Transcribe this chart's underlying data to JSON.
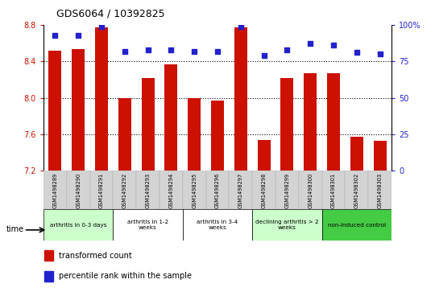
{
  "title": "GDS6064 / 10392825",
  "samples": [
    "GSM1498289",
    "GSM1498290",
    "GSM1498291",
    "GSM1498292",
    "GSM1498293",
    "GSM1498294",
    "GSM1498295",
    "GSM1498296",
    "GSM1498297",
    "GSM1498298",
    "GSM1498299",
    "GSM1498300",
    "GSM1498301",
    "GSM1498302",
    "GSM1498303"
  ],
  "transformed_count": [
    8.52,
    8.53,
    8.77,
    8.0,
    8.22,
    8.37,
    8.0,
    7.97,
    8.77,
    7.54,
    8.22,
    8.27,
    8.27,
    7.57,
    7.53
  ],
  "percentile_rank": [
    93,
    93,
    99,
    82,
    83,
    83,
    82,
    82,
    99,
    79,
    83,
    87,
    86,
    81,
    80
  ],
  "ylim_left": [
    7.2,
    8.8
  ],
  "ylim_right": [
    0,
    100
  ],
  "yticks_left": [
    7.2,
    7.6,
    8.0,
    8.4,
    8.8
  ],
  "yticks_right": [
    0,
    25,
    50,
    75,
    100
  ],
  "bar_color": "#cc1100",
  "dot_color": "#2222cc",
  "groups": [
    {
      "label": "arthritis in 0-3 days",
      "start": 0,
      "end": 3,
      "color": "#ccffcc"
    },
    {
      "label": "arthritis in 1-2\nweeks",
      "start": 3,
      "end": 6,
      "color": "#ffffff"
    },
    {
      "label": "arthritis in 3-4\nweeks",
      "start": 6,
      "end": 9,
      "color": "#ffffff"
    },
    {
      "label": "declining arthritis > 2\nweeks",
      "start": 9,
      "end": 12,
      "color": "#ccffcc"
    },
    {
      "label": "non-induced control",
      "start": 12,
      "end": 15,
      "color": "#44cc44"
    }
  ],
  "legend_red": "transformed count",
  "legend_blue": "percentile rank within the sample",
  "axis_label_color_left": "#cc1100",
  "axis_label_color_right": "#2222cc"
}
